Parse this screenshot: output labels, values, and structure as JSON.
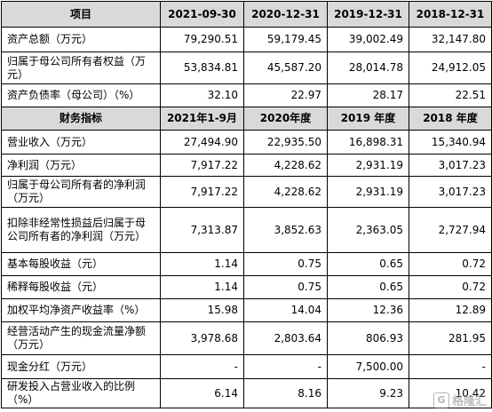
{
  "table1": {
    "header": [
      "项目",
      "2021-09-30",
      "2020-12-31",
      "2019-12-31",
      "2018-12-31"
    ],
    "rows": [
      [
        "资产总额（万元）",
        "79,290.51",
        "59,179.45",
        "39,002.49",
        "32,147.80"
      ],
      [
        "归属于母公司所有者权益（万元）",
        "53,834.81",
        "45,587.20",
        "28,014.78",
        "24,912.05"
      ],
      [
        "资产负债率（母公司）（%）",
        "32.10",
        "22.97",
        "28.17",
        "22.51"
      ]
    ]
  },
  "table2": {
    "header": [
      "财务指标",
      "2021年1-9月",
      "2020年度",
      "2019 年度",
      "2018 年度"
    ],
    "rows": [
      [
        "营业收入（万元）",
        "27,494.90",
        "22,935.50",
        "16,898.31",
        "15,340.94"
      ],
      [
        "净利润（万元）",
        "7,917.22",
        "4,228.62",
        "2,931.19",
        "3,017.23"
      ],
      [
        "归属于母公司所有者的净利润（万元）",
        "7,917.22",
        "4,228.62",
        "2,931.19",
        "3,017.23"
      ],
      [
        "扣除非经常性损益后归属于母公司所有者的净利润（万元）",
        "7,313.87",
        "3,852.63",
        "2,363.05",
        "2,727.94"
      ],
      [
        "基本每股收益（元）",
        "1.14",
        "0.75",
        "0.65",
        "0.72"
      ],
      [
        "稀释每股收益（元）",
        "1.14",
        "0.75",
        "0.65",
        "0.72"
      ],
      [
        "加权平均净资产收益率（%）",
        "15.98",
        "14.04",
        "12.36",
        "12.89"
      ],
      [
        "经营活动产生的现金流量净额（万元）",
        "3,978.68",
        "2,803.64",
        "806.93",
        "281.95"
      ],
      [
        "现金分红（万元）",
        "-",
        "-",
        "7,500.00",
        "-"
      ],
      [
        "研发投入占营业收入的比例（%）",
        "6.14",
        "8.16",
        "9.23",
        "10.42"
      ]
    ]
  },
  "watermark": {
    "icon_text": "G",
    "text": "格隆汇"
  }
}
